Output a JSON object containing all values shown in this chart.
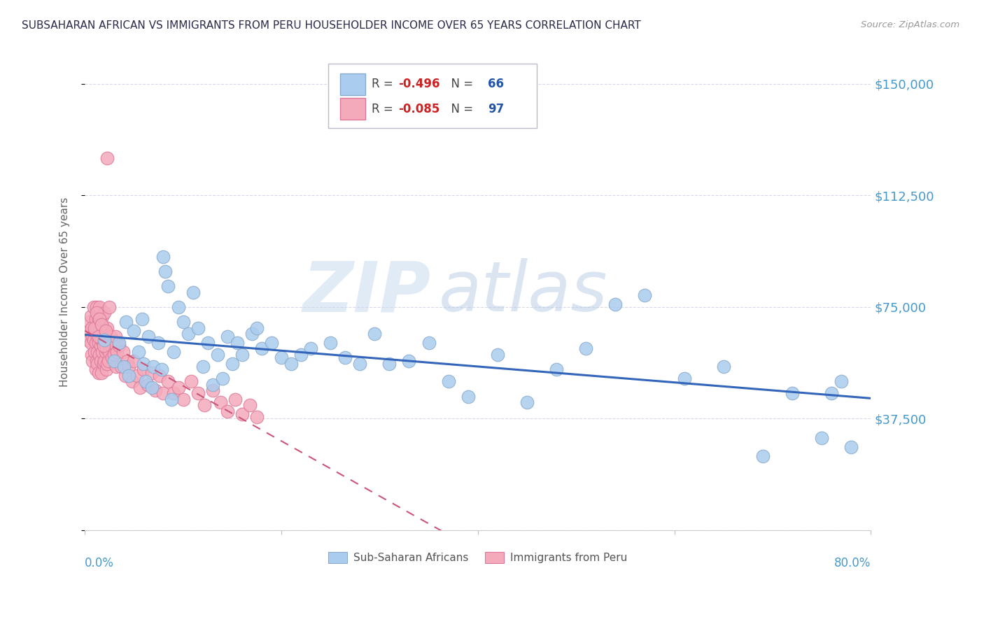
{
  "title": "SUBSAHARAN AFRICAN VS IMMIGRANTS FROM PERU HOUSEHOLDER INCOME OVER 65 YEARS CORRELATION CHART",
  "source": "Source: ZipAtlas.com",
  "ylabel": "Householder Income Over 65 years",
  "watermark_zip": "ZIP",
  "watermark_atlas": "atlas",
  "xlim": [
    0.0,
    0.8
  ],
  "ylim": [
    0,
    160000
  ],
  "yticks": [
    0,
    37500,
    75000,
    112500,
    150000
  ],
  "ytick_labels": [
    "",
    "$37,500",
    "$75,000",
    "$112,500",
    "$150,000"
  ],
  "xtick_left": "0.0%",
  "xtick_right": "80.0%",
  "bg_color": "#ffffff",
  "grid_color": "#d8d8e8",
  "title_color": "#2a2a4a",
  "right_tick_color": "#4499cc",
  "series_blue": {
    "name": "Sub-Saharan Africans",
    "face_color": "#aaccee",
    "edge_color": "#88aacc",
    "line_color": "#3366bb",
    "R": -0.496,
    "N": 66,
    "x": [
      0.02,
      0.03,
      0.035,
      0.04,
      0.042,
      0.045,
      0.05,
      0.055,
      0.058,
      0.06,
      0.062,
      0.065,
      0.068,
      0.07,
      0.075,
      0.078,
      0.08,
      0.082,
      0.085,
      0.088,
      0.09,
      0.095,
      0.1,
      0.105,
      0.11,
      0.115,
      0.12,
      0.125,
      0.13,
      0.135,
      0.14,
      0.145,
      0.15,
      0.155,
      0.16,
      0.17,
      0.175,
      0.18,
      0.19,
      0.2,
      0.21,
      0.22,
      0.23,
      0.25,
      0.265,
      0.28,
      0.295,
      0.31,
      0.33,
      0.35,
      0.37,
      0.39,
      0.42,
      0.45,
      0.48,
      0.51,
      0.54,
      0.57,
      0.61,
      0.65,
      0.69,
      0.72,
      0.75,
      0.76,
      0.77,
      0.78
    ],
    "y": [
      64000,
      57000,
      63000,
      55000,
      70000,
      52000,
      67000,
      60000,
      71000,
      56000,
      50000,
      65000,
      48000,
      55000,
      63000,
      54000,
      92000,
      87000,
      82000,
      44000,
      60000,
      75000,
      70000,
      66000,
      80000,
      68000,
      55000,
      63000,
      49000,
      59000,
      51000,
      65000,
      56000,
      63000,
      59000,
      66000,
      68000,
      61000,
      63000,
      58000,
      56000,
      59000,
      61000,
      63000,
      58000,
      56000,
      66000,
      56000,
      57000,
      63000,
      50000,
      45000,
      59000,
      43000,
      54000,
      61000,
      76000,
      79000,
      51000,
      55000,
      25000,
      46000,
      31000,
      46000,
      50000,
      28000
    ]
  },
  "series_pink": {
    "name": "Immigrants from Peru",
    "face_color": "#f4aabb",
    "edge_color": "#dd7799",
    "line_color": "#cc5577",
    "R": -0.085,
    "N": 97,
    "x": [
      0.003,
      0.004,
      0.005,
      0.006,
      0.006,
      0.007,
      0.007,
      0.008,
      0.008,
      0.009,
      0.009,
      0.01,
      0.01,
      0.011,
      0.011,
      0.011,
      0.012,
      0.012,
      0.012,
      0.013,
      0.013,
      0.013,
      0.014,
      0.014,
      0.014,
      0.015,
      0.015,
      0.015,
      0.016,
      0.016,
      0.016,
      0.017,
      0.017,
      0.018,
      0.018,
      0.018,
      0.019,
      0.019,
      0.02,
      0.02,
      0.02,
      0.021,
      0.021,
      0.022,
      0.022,
      0.023,
      0.023,
      0.024,
      0.024,
      0.025,
      0.025,
      0.026,
      0.027,
      0.028,
      0.029,
      0.03,
      0.031,
      0.032,
      0.033,
      0.035,
      0.037,
      0.039,
      0.041,
      0.043,
      0.045,
      0.048,
      0.05,
      0.053,
      0.056,
      0.06,
      0.064,
      0.068,
      0.072,
      0.076,
      0.08,
      0.085,
      0.09,
      0.095,
      0.1,
      0.108,
      0.115,
      0.122,
      0.13,
      0.138,
      0.145,
      0.153,
      0.16,
      0.168,
      0.175,
      0.01,
      0.012,
      0.014,
      0.015,
      0.017,
      0.019,
      0.021,
      0.023
    ],
    "y": [
      64000,
      67000,
      70000,
      63000,
      72000,
      59000,
      68000,
      65000,
      57000,
      75000,
      64000,
      60000,
      67000,
      71000,
      63000,
      54000,
      68000,
      57000,
      75000,
      60000,
      65000,
      56000,
      71000,
      63000,
      53000,
      67000,
      59000,
      75000,
      62000,
      57000,
      70000,
      64000,
      53000,
      68000,
      60000,
      72000,
      56000,
      63000,
      66000,
      57000,
      73000,
      60000,
      67000,
      61000,
      54000,
      68000,
      56000,
      63000,
      57000,
      75000,
      60000,
      65000,
      62000,
      58000,
      63000,
      59000,
      65000,
      55000,
      60000,
      62000,
      55000,
      60000,
      52000,
      57000,
      55000,
      50000,
      57000,
      52000,
      48000,
      54000,
      49000,
      53000,
      47000,
      52000,
      46000,
      50000,
      46000,
      48000,
      44000,
      50000,
      46000,
      42000,
      47000,
      43000,
      40000,
      44000,
      39000,
      42000,
      38000,
      68000,
      73000,
      65000,
      71000,
      69000,
      62000,
      67000,
      125000
    ]
  }
}
